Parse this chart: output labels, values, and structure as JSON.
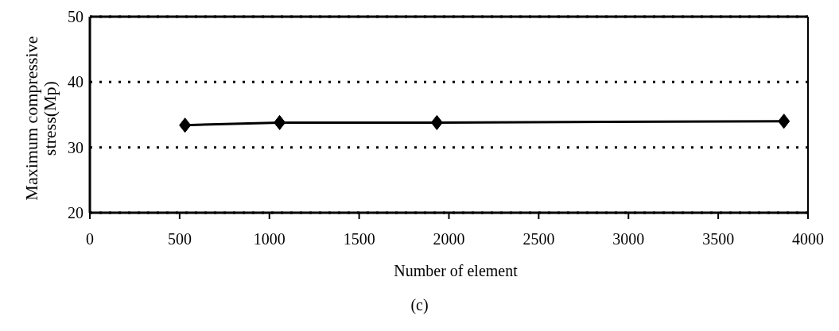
{
  "chart_data": {
    "type": "line",
    "xlabel": "Number of element",
    "ylabel": "Maximum compressive stress(Mp)",
    "annotations": [
      "(c)"
    ],
    "x": [
      530,
      1057,
      1933,
      3866
    ],
    "series": [
      {
        "color": "#000000",
        "values": [
          33.4,
          33.8,
          33.8,
          34.0
        ]
      }
    ],
    "xlim": [
      0,
      4000
    ],
    "xticks": [
      0,
      500,
      1000,
      1500,
      2000,
      2500,
      3000,
      3500,
      4000
    ],
    "ylim": [
      20,
      50
    ],
    "yticks": [
      20,
      30,
      40,
      50
    ],
    "grid": "y",
    "marker": "diamond",
    "line_style": "solid"
  }
}
